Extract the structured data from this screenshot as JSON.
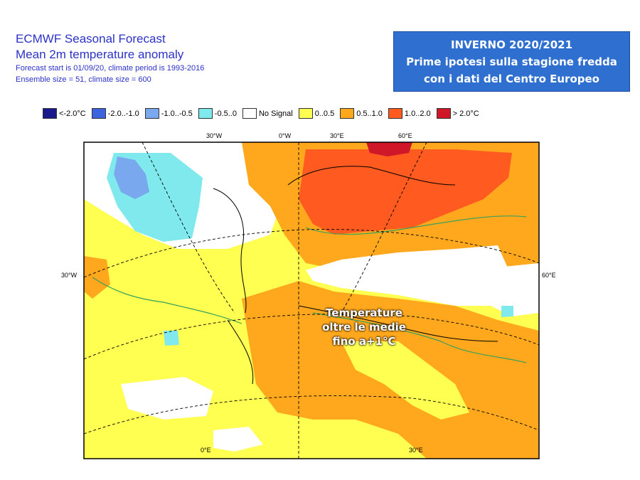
{
  "header": {
    "title_line1": "ECMWF Seasonal Forecast",
    "title_line2": "Mean 2m temperature anomaly",
    "meta_line1": "Forecast start is 01/09/20, climate period is 1993-2016",
    "meta_line2": "Ensemble size = 51, climate size = 600"
  },
  "banner": {
    "line1": "INVERNO 2020/2021",
    "line2": "Prime ipotesi sulla stagione fredda",
    "line3": "con i dati del Centro Europeo"
  },
  "legend": [
    {
      "label": "<-2.0°C",
      "color": "#1a1a8c"
    },
    {
      "label": "-2.0..-1.0",
      "color": "#3d63e0"
    },
    {
      "label": "-1.0..-0.5",
      "color": "#79a8ef"
    },
    {
      "label": "-0.5..0",
      "color": "#7fe9ee"
    },
    {
      "label": "No Signal",
      "color": "#ffffff"
    },
    {
      "label": "0..0.5",
      "color": "#ffff52"
    },
    {
      "label": "0.5..1.0",
      "color": "#ffa81d"
    },
    {
      "label": "1.0..2.0",
      "color": "#ff5a1f"
    },
    {
      "label": "> 2.0°C",
      "color": "#d0172a"
    }
  ],
  "axis_labels": {
    "top_left": "30°W",
    "top_mid_left": "0°W",
    "top_mid_right": "30°E",
    "top_right": "60°E",
    "left": "30°W",
    "right": "60°E",
    "bottom_left": "0°E",
    "bottom_right": "30°E"
  },
  "map_note": "Temperature oltre le medie fino a+1°C"
}
